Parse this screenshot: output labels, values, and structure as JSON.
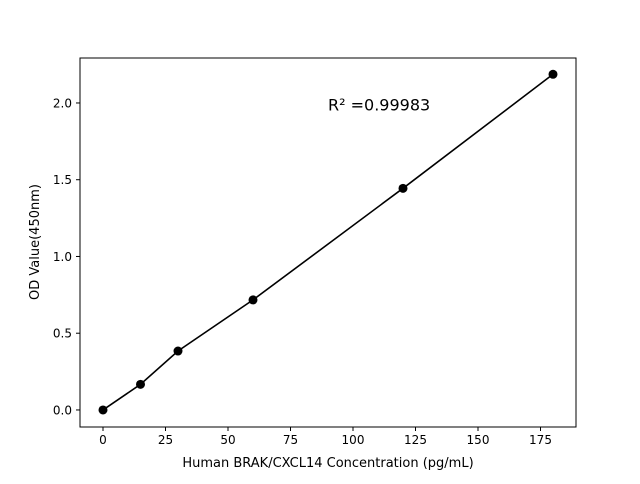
{
  "chart_data": {
    "type": "line",
    "title": "",
    "xlabel": "Human BRAK/CXCL14 Concentration (pg/mL)",
    "ylabel": "OD Value(450nm)",
    "xlim": [
      -9.2,
      189.2
    ],
    "ylim": [
      -0.111,
      2.293
    ],
    "xticks": [
      0,
      25,
      50,
      75,
      100,
      125,
      150,
      175
    ],
    "xtick_labels": [
      "0",
      "25",
      "50",
      "75",
      "100",
      "125",
      "150",
      "175"
    ],
    "yticks": [
      0,
      0.5,
      1.0,
      1.5,
      2.0
    ],
    "ytick_labels": [
      "0.0",
      "0.5",
      "1.0",
      "1.5",
      "2.0"
    ],
    "grid": false,
    "series": [
      {
        "x": [
          0,
          15,
          30,
          60,
          120,
          180
        ],
        "y": [
          0.0,
          0.167,
          0.384,
          0.717,
          1.444,
          2.187
        ],
        "color": "#000000",
        "marker": "circle"
      }
    ],
    "annotation": {
      "text": "R² =0.99983",
      "x": 90,
      "y": 1.99
    }
  }
}
